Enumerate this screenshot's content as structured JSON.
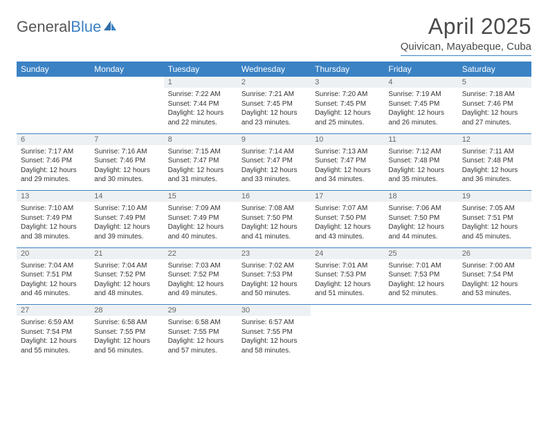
{
  "brand": {
    "part1": "General",
    "part2": "Blue"
  },
  "title": "April 2025",
  "location": "Quivican, Mayabeque, Cuba",
  "colors": {
    "accent": "#3b82c4",
    "header_bg": "#3b82c4",
    "daynum_bg": "#eef1f3",
    "text": "#333333",
    "title_text": "#4a4a4a"
  },
  "days_of_week": [
    "Sunday",
    "Monday",
    "Tuesday",
    "Wednesday",
    "Thursday",
    "Friday",
    "Saturday"
  ],
  "weeks": [
    [
      null,
      null,
      {
        "n": "1",
        "sr": "Sunrise: 7:22 AM",
        "ss": "Sunset: 7:44 PM",
        "dl": "Daylight: 12 hours and 22 minutes."
      },
      {
        "n": "2",
        "sr": "Sunrise: 7:21 AM",
        "ss": "Sunset: 7:45 PM",
        "dl": "Daylight: 12 hours and 23 minutes."
      },
      {
        "n": "3",
        "sr": "Sunrise: 7:20 AM",
        "ss": "Sunset: 7:45 PM",
        "dl": "Daylight: 12 hours and 25 minutes."
      },
      {
        "n": "4",
        "sr": "Sunrise: 7:19 AM",
        "ss": "Sunset: 7:45 PM",
        "dl": "Daylight: 12 hours and 26 minutes."
      },
      {
        "n": "5",
        "sr": "Sunrise: 7:18 AM",
        "ss": "Sunset: 7:46 PM",
        "dl": "Daylight: 12 hours and 27 minutes."
      }
    ],
    [
      {
        "n": "6",
        "sr": "Sunrise: 7:17 AM",
        "ss": "Sunset: 7:46 PM",
        "dl": "Daylight: 12 hours and 29 minutes."
      },
      {
        "n": "7",
        "sr": "Sunrise: 7:16 AM",
        "ss": "Sunset: 7:46 PM",
        "dl": "Daylight: 12 hours and 30 minutes."
      },
      {
        "n": "8",
        "sr": "Sunrise: 7:15 AM",
        "ss": "Sunset: 7:47 PM",
        "dl": "Daylight: 12 hours and 31 minutes."
      },
      {
        "n": "9",
        "sr": "Sunrise: 7:14 AM",
        "ss": "Sunset: 7:47 PM",
        "dl": "Daylight: 12 hours and 33 minutes."
      },
      {
        "n": "10",
        "sr": "Sunrise: 7:13 AM",
        "ss": "Sunset: 7:47 PM",
        "dl": "Daylight: 12 hours and 34 minutes."
      },
      {
        "n": "11",
        "sr": "Sunrise: 7:12 AM",
        "ss": "Sunset: 7:48 PM",
        "dl": "Daylight: 12 hours and 35 minutes."
      },
      {
        "n": "12",
        "sr": "Sunrise: 7:11 AM",
        "ss": "Sunset: 7:48 PM",
        "dl": "Daylight: 12 hours and 36 minutes."
      }
    ],
    [
      {
        "n": "13",
        "sr": "Sunrise: 7:10 AM",
        "ss": "Sunset: 7:49 PM",
        "dl": "Daylight: 12 hours and 38 minutes."
      },
      {
        "n": "14",
        "sr": "Sunrise: 7:10 AM",
        "ss": "Sunset: 7:49 PM",
        "dl": "Daylight: 12 hours and 39 minutes."
      },
      {
        "n": "15",
        "sr": "Sunrise: 7:09 AM",
        "ss": "Sunset: 7:49 PM",
        "dl": "Daylight: 12 hours and 40 minutes."
      },
      {
        "n": "16",
        "sr": "Sunrise: 7:08 AM",
        "ss": "Sunset: 7:50 PM",
        "dl": "Daylight: 12 hours and 41 minutes."
      },
      {
        "n": "17",
        "sr": "Sunrise: 7:07 AM",
        "ss": "Sunset: 7:50 PM",
        "dl": "Daylight: 12 hours and 43 minutes."
      },
      {
        "n": "18",
        "sr": "Sunrise: 7:06 AM",
        "ss": "Sunset: 7:50 PM",
        "dl": "Daylight: 12 hours and 44 minutes."
      },
      {
        "n": "19",
        "sr": "Sunrise: 7:05 AM",
        "ss": "Sunset: 7:51 PM",
        "dl": "Daylight: 12 hours and 45 minutes."
      }
    ],
    [
      {
        "n": "20",
        "sr": "Sunrise: 7:04 AM",
        "ss": "Sunset: 7:51 PM",
        "dl": "Daylight: 12 hours and 46 minutes."
      },
      {
        "n": "21",
        "sr": "Sunrise: 7:04 AM",
        "ss": "Sunset: 7:52 PM",
        "dl": "Daylight: 12 hours and 48 minutes."
      },
      {
        "n": "22",
        "sr": "Sunrise: 7:03 AM",
        "ss": "Sunset: 7:52 PM",
        "dl": "Daylight: 12 hours and 49 minutes."
      },
      {
        "n": "23",
        "sr": "Sunrise: 7:02 AM",
        "ss": "Sunset: 7:53 PM",
        "dl": "Daylight: 12 hours and 50 minutes."
      },
      {
        "n": "24",
        "sr": "Sunrise: 7:01 AM",
        "ss": "Sunset: 7:53 PM",
        "dl": "Daylight: 12 hours and 51 minutes."
      },
      {
        "n": "25",
        "sr": "Sunrise: 7:01 AM",
        "ss": "Sunset: 7:53 PM",
        "dl": "Daylight: 12 hours and 52 minutes."
      },
      {
        "n": "26",
        "sr": "Sunrise: 7:00 AM",
        "ss": "Sunset: 7:54 PM",
        "dl": "Daylight: 12 hours and 53 minutes."
      }
    ],
    [
      {
        "n": "27",
        "sr": "Sunrise: 6:59 AM",
        "ss": "Sunset: 7:54 PM",
        "dl": "Daylight: 12 hours and 55 minutes."
      },
      {
        "n": "28",
        "sr": "Sunrise: 6:58 AM",
        "ss": "Sunset: 7:55 PM",
        "dl": "Daylight: 12 hours and 56 minutes."
      },
      {
        "n": "29",
        "sr": "Sunrise: 6:58 AM",
        "ss": "Sunset: 7:55 PM",
        "dl": "Daylight: 12 hours and 57 minutes."
      },
      {
        "n": "30",
        "sr": "Sunrise: 6:57 AM",
        "ss": "Sunset: 7:55 PM",
        "dl": "Daylight: 12 hours and 58 minutes."
      },
      null,
      null,
      null
    ]
  ]
}
